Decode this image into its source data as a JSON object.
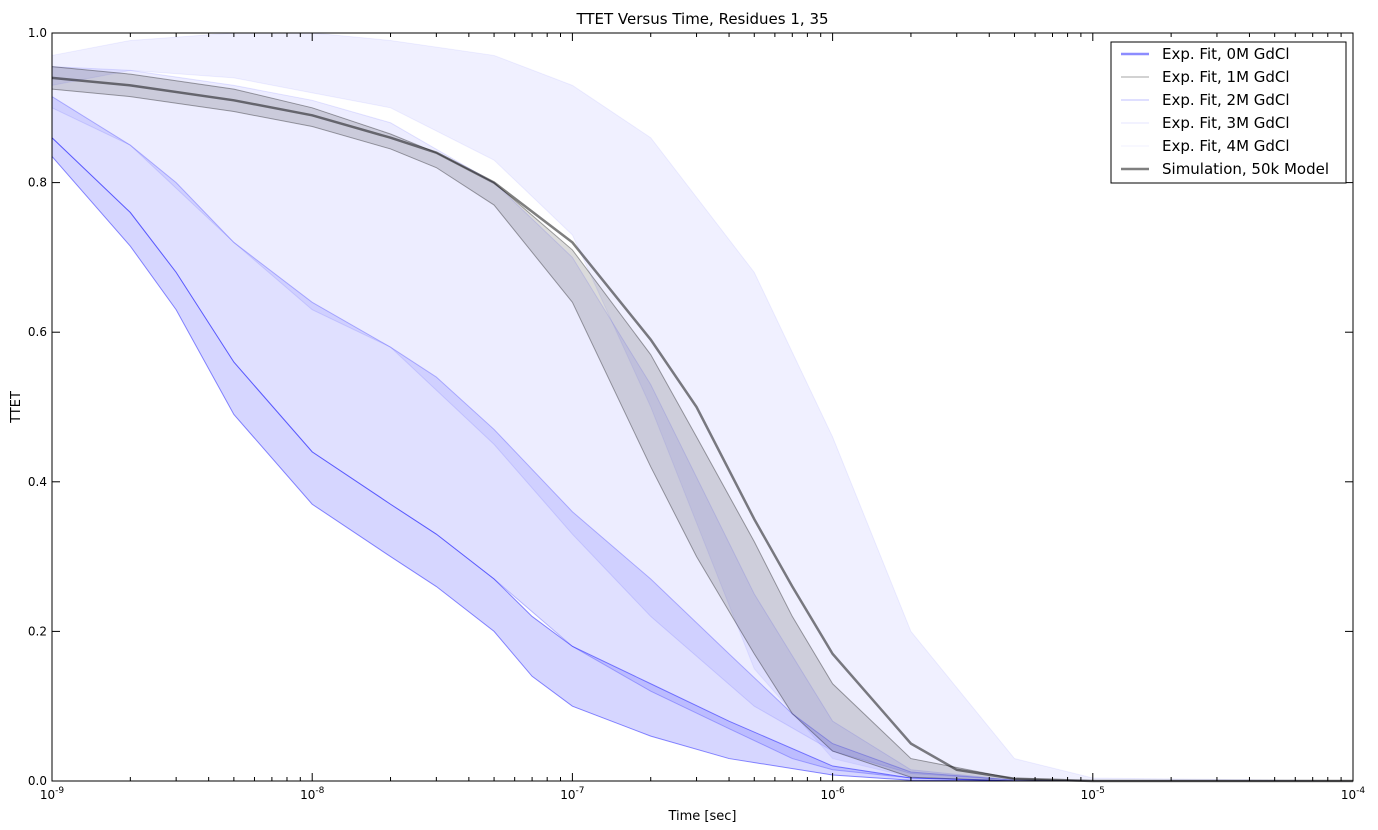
{
  "chart_data": {
    "type": "area",
    "title": "TTET Versus Time, Residues 1, 35",
    "xlabel": "Time [sec]",
    "ylabel": "TTET",
    "xscale": "log",
    "xlim": [
      1e-09,
      0.0001
    ],
    "ylim": [
      0.0,
      1.0
    ],
    "x_tick_labels": [
      {
        "base": "10",
        "exp": "-9",
        "value": 1e-09
      },
      {
        "base": "10",
        "exp": "-8",
        "value": 1e-08
      },
      {
        "base": "10",
        "exp": "-7",
        "value": 1e-07
      },
      {
        "base": "10",
        "exp": "-6",
        "value": 1e-06
      },
      {
        "base": "10",
        "exp": "-5",
        "value": 1e-05
      },
      {
        "base": "10",
        "exp": "-4",
        "value": 0.0001
      }
    ],
    "y_tick_labels": [
      "0.0",
      "0.2",
      "0.4",
      "0.6",
      "0.8",
      "1.0"
    ],
    "legend_position": "top-right",
    "grid": false,
    "series": [
      {
        "name": "Exp. Fit, 4M GdCl",
        "color": "#0000ff",
        "fill_opacity": 0.06,
        "line_opacity": 0.06,
        "x": [
          1e-09,
          2e-09,
          5e-09,
          1e-08,
          2e-08,
          5e-08,
          1e-07,
          2e-07,
          5e-07,
          1e-06,
          2e-06,
          5e-06,
          1e-05,
          0.0001
        ],
        "upper": [
          0.97,
          0.99,
          1.0,
          1.0,
          0.99,
          0.97,
          0.93,
          0.86,
          0.68,
          0.46,
          0.2,
          0.03,
          0.004,
          0.0
        ],
        "lower": [
          0.93,
          0.95,
          0.94,
          0.92,
          0.9,
          0.83,
          0.73,
          0.5,
          0.15,
          0.03,
          0.005,
          0.0,
          0.0,
          0.0
        ]
      },
      {
        "name": "Exp. Fit, 3M GdCl",
        "color": "#0000ff",
        "fill_opacity": 0.07,
        "line_opacity": 0.1,
        "x": [
          1e-09,
          2e-09,
          5e-09,
          1e-08,
          2e-08,
          5e-08,
          1e-07,
          2e-07,
          5e-07,
          1e-06,
          2e-06,
          5e-06,
          1e-05,
          0.0001
        ],
        "upper": [
          0.955,
          0.95,
          0.93,
          0.91,
          0.88,
          0.8,
          0.7,
          0.53,
          0.25,
          0.08,
          0.015,
          0.001,
          0.0,
          0.0
        ],
        "lower": [
          0.9,
          0.85,
          0.72,
          0.63,
          0.58,
          0.45,
          0.33,
          0.22,
          0.1,
          0.04,
          0.01,
          0.001,
          0.0,
          0.0
        ]
      },
      {
        "name": "Exp. Fit, 2M GdCl",
        "color": "#0000ff",
        "fill_opacity": 0.12,
        "line_opacity": 0.25,
        "x": [
          1e-09,
          2e-09,
          3e-09,
          5e-09,
          1e-08,
          2e-08,
          3e-08,
          5e-08,
          1e-07,
          2e-07,
          4e-07,
          7e-07,
          1e-06,
          2e-06,
          5e-06,
          1e-05,
          0.0001
        ],
        "upper": [
          0.915,
          0.85,
          0.8,
          0.72,
          0.64,
          0.58,
          0.54,
          0.47,
          0.36,
          0.27,
          0.17,
          0.09,
          0.05,
          0.012,
          0.001,
          0.0,
          0.0
        ],
        "lower": [
          0.86,
          0.76,
          0.68,
          0.56,
          0.44,
          0.37,
          0.33,
          0.27,
          0.18,
          0.12,
          0.07,
          0.03,
          0.015,
          0.004,
          0.0,
          0.0,
          0.0
        ]
      },
      {
        "name": "Exp. Fit, 1M GdCl",
        "color": "#000000",
        "fill_opacity": 0.14,
        "line_opacity": 0.35,
        "x": [
          1e-09,
          2e-09,
          5e-09,
          1e-08,
          2e-08,
          3e-08,
          5e-08,
          1e-07,
          2e-07,
          3e-07,
          5e-07,
          7e-07,
          1e-06,
          2e-06,
          5e-06,
          1e-05,
          0.0001
        ],
        "upper": [
          0.955,
          0.945,
          0.925,
          0.9,
          0.865,
          0.84,
          0.8,
          0.71,
          0.57,
          0.46,
          0.32,
          0.22,
          0.13,
          0.03,
          0.003,
          0.0,
          0.0
        ],
        "lower": [
          0.925,
          0.915,
          0.895,
          0.875,
          0.845,
          0.82,
          0.77,
          0.64,
          0.42,
          0.3,
          0.17,
          0.09,
          0.04,
          0.005,
          0.0,
          0.0,
          0.0
        ]
      },
      {
        "name": "Exp. Fit, 0M GdCl",
        "color": "#0000ff",
        "fill_opacity": 0.16,
        "line_opacity": 0.45,
        "x": [
          1e-09,
          2e-09,
          3e-09,
          5e-09,
          1e-08,
          2e-08,
          3e-08,
          5e-08,
          7e-08,
          1e-07,
          2e-07,
          4e-07,
          1e-06,
          2e-06,
          5e-06,
          1e-05,
          0.0001
        ],
        "upper": [
          0.86,
          0.76,
          0.68,
          0.56,
          0.44,
          0.37,
          0.33,
          0.27,
          0.22,
          0.18,
          0.13,
          0.08,
          0.02,
          0.004,
          0.0,
          0.0,
          0.0
        ],
        "lower": [
          0.835,
          0.715,
          0.63,
          0.49,
          0.37,
          0.3,
          0.26,
          0.2,
          0.14,
          0.1,
          0.06,
          0.03,
          0.008,
          0.001,
          0.0,
          0.0,
          0.0
        ]
      },
      {
        "name": "Simulation, 50k Model",
        "color": "#000000",
        "line_opacity": 0.5,
        "line_width": 2.5,
        "x": [
          1e-09,
          2e-09,
          5e-09,
          1e-08,
          2e-08,
          3e-08,
          5e-08,
          1e-07,
          2e-07,
          3e-07,
          5e-07,
          7e-07,
          1e-06,
          2e-06,
          3e-06,
          5e-06,
          1e-05,
          0.0001
        ],
        "y": [
          0.94,
          0.93,
          0.91,
          0.89,
          0.86,
          0.84,
          0.8,
          0.72,
          0.59,
          0.5,
          0.35,
          0.26,
          0.17,
          0.05,
          0.015,
          0.003,
          0.0,
          0.0
        ]
      }
    ],
    "legend_order": [
      "Exp. Fit, 0M GdCl",
      "Exp. Fit, 1M GdCl",
      "Exp. Fit, 2M GdCl",
      "Exp. Fit, 3M GdCl",
      "Exp. Fit, 4M GdCl",
      "Simulation, 50k Model"
    ]
  }
}
